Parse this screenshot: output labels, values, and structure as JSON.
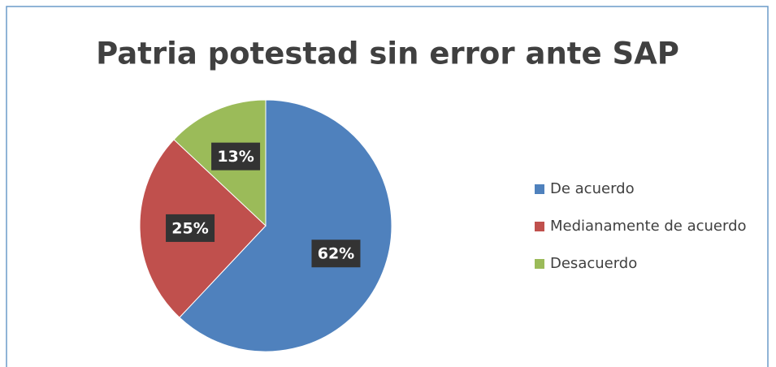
{
  "chart_data": {
    "type": "pie",
    "title": "Patria potestad sin error ante SAP",
    "categories": [
      "De acuerdo",
      "Medianamente de acuerdo",
      "Desacuerdo"
    ],
    "values": [
      62,
      25,
      13
    ],
    "value_labels": [
      "62%",
      "25%",
      "13%"
    ],
    "colors": [
      "#4f81bd",
      "#c0504d",
      "#9bbb59"
    ],
    "legend": "right"
  }
}
